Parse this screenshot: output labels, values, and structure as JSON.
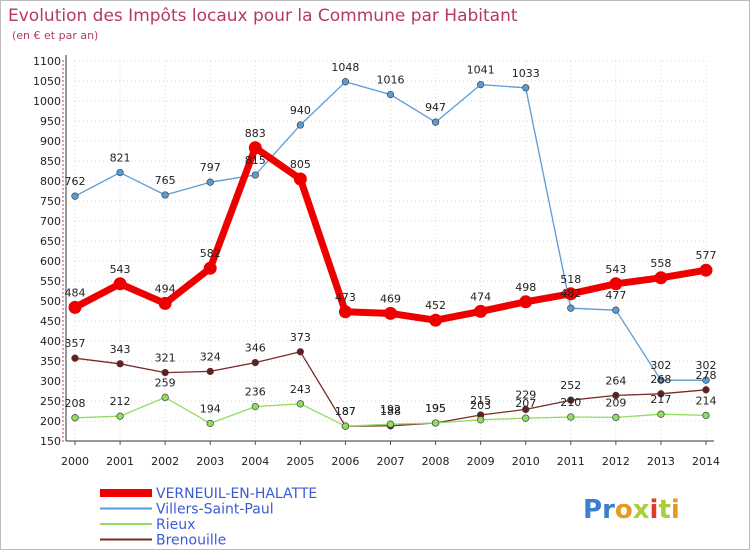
{
  "chart_data": {
    "type": "line",
    "title": "Evolution des Impôts locaux pour la Commune par Habitant",
    "subtitle": "(en € et par an)",
    "x": [
      "2000",
      "2001",
      "2002",
      "2003",
      "2004",
      "2005",
      "2006",
      "2007",
      "2008",
      "2009",
      "2010",
      "2011",
      "2012",
      "2013",
      "2014"
    ],
    "ylim": [
      150,
      1100
    ],
    "yticks": [
      150,
      200,
      250,
      300,
      350,
      400,
      450,
      500,
      550,
      600,
      650,
      700,
      750,
      800,
      850,
      900,
      950,
      1000,
      1050,
      1100
    ],
    "grid": true,
    "legend_position": "bottom-left",
    "series": [
      {
        "name": "VERNEUIL-EN-HALATTE",
        "color": "#ee0000",
        "values": [
          484,
          543,
          494,
          582,
          883,
          805,
          473,
          469,
          452,
          474,
          498,
          518,
          543,
          558,
          577
        ]
      },
      {
        "name": "Villers-Saint-Paul",
        "color": "#5b9bd5",
        "values": [
          762,
          821,
          765,
          797,
          815,
          940,
          1048,
          1016,
          947,
          1041,
          1033,
          482,
          477,
          302,
          302
        ]
      },
      {
        "name": "Rieux",
        "color": "#90dd60",
        "values": [
          208,
          212,
          259,
          194,
          236,
          243,
          187,
          192,
          195,
          203,
          207,
          210,
          209,
          217,
          214
        ]
      },
      {
        "name": "Brenouille",
        "color": "#7b2a2a",
        "values": [
          357,
          343,
          321,
          324,
          346,
          373,
          187,
          188,
          195,
          215,
          229,
          252,
          264,
          268,
          278
        ]
      }
    ],
    "labels": [
      {
        "series": 0,
        "values": [
          "484",
          "543",
          "494",
          "582",
          "883",
          "805",
          "473",
          "469",
          "452",
          "474",
          "498",
          "518",
          "543",
          "558",
          "577"
        ]
      },
      {
        "series": 1,
        "values": [
          "762",
          "821",
          "765",
          "797",
          "815",
          "940",
          "1048",
          "1016",
          "947",
          "1041",
          "1033",
          "482",
          "477",
          "302",
          "302"
        ]
      },
      {
        "series": 2,
        "values": [
          "208",
          "212",
          "259",
          "194",
          "236",
          "243",
          "187",
          "192",
          "195",
          "203",
          "207",
          "210",
          "209",
          "217",
          "214"
        ]
      },
      {
        "series": 3,
        "values": [
          "357",
          "343",
          "321",
          "324",
          "346",
          "373",
          "187",
          "188",
          "195",
          "215",
          "229",
          "252",
          "264",
          "268",
          "278"
        ]
      }
    ]
  },
  "logo": {
    "text": "Proxiti"
  }
}
